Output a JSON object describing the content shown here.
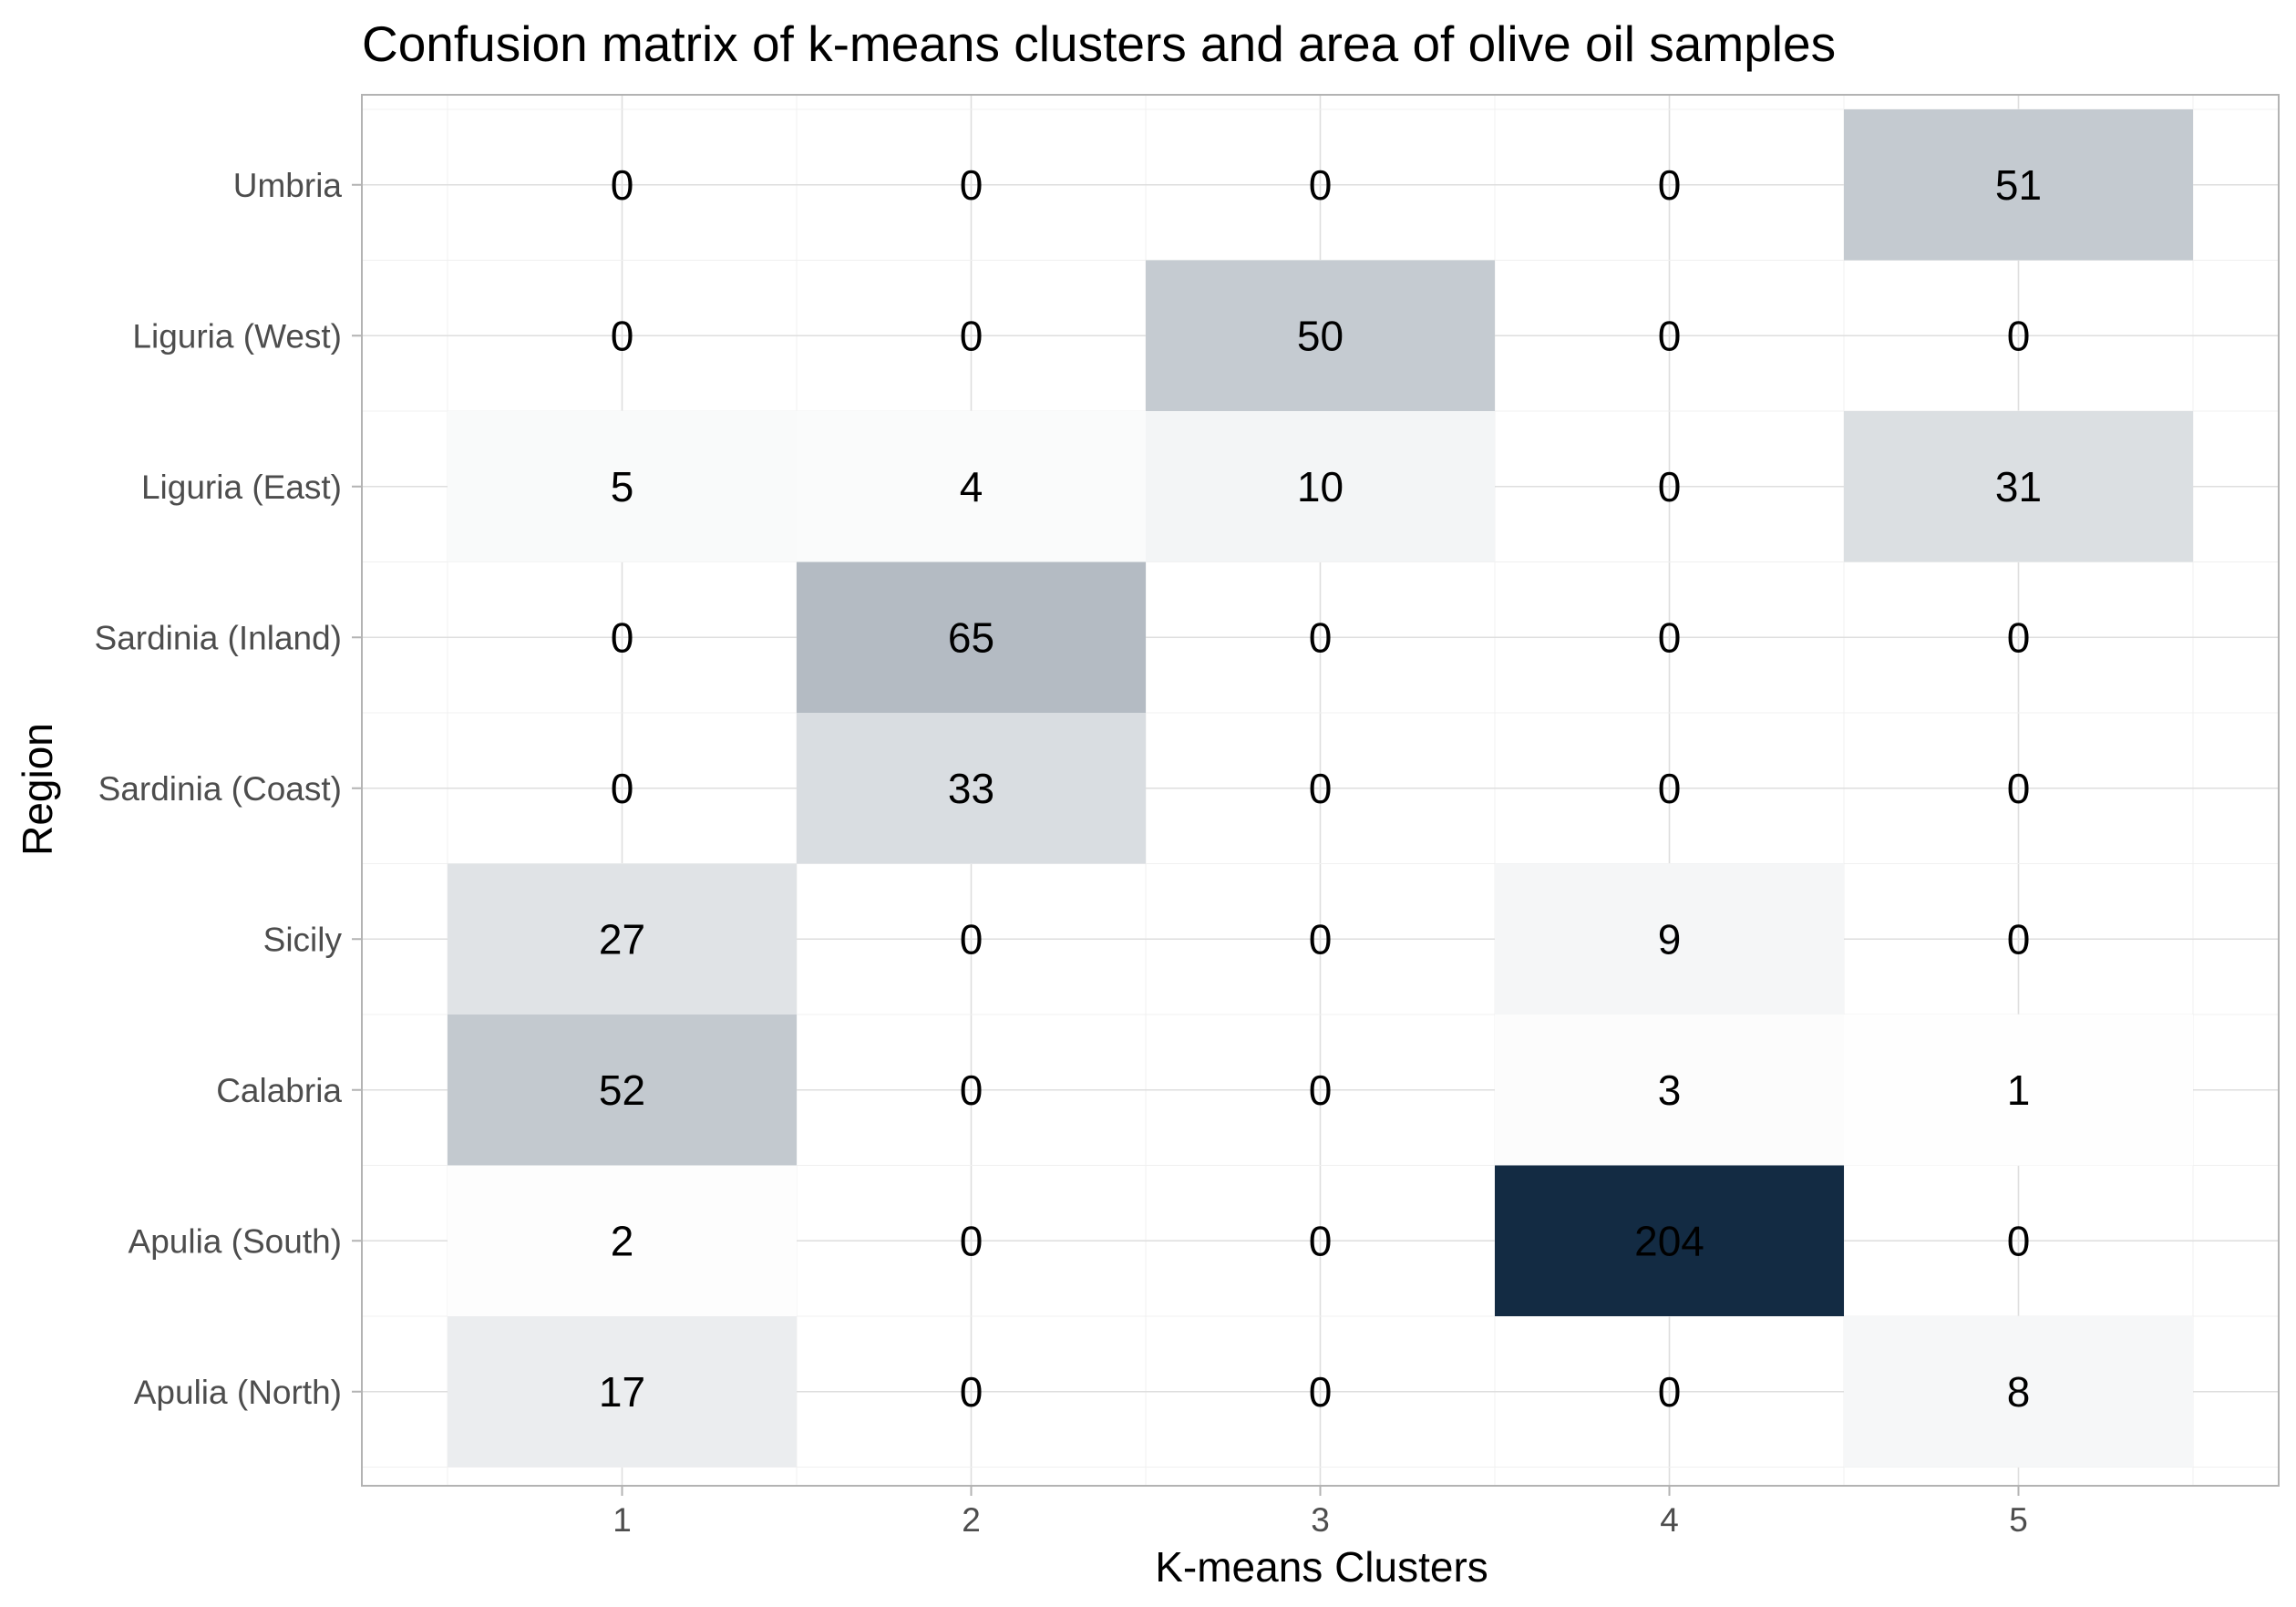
{
  "chart_data": {
    "type": "heatmap",
    "title": "Confusion matrix of k-means clusters and area of olive oil samples",
    "xlabel": "K-means Clusters",
    "ylabel": "Region",
    "x_categories": [
      "1",
      "2",
      "3",
      "4",
      "5"
    ],
    "y_categories": [
      "Umbria",
      "Liguria (West)",
      "Liguria (East)",
      "Sardinia (Inland)",
      "Sardinia (Coast)",
      "Sicily",
      "Calabria",
      "Apulia (South)",
      "Apulia (North)"
    ],
    "values": [
      [
        0,
        0,
        0,
        0,
        51
      ],
      [
        0,
        0,
        50,
        0,
        0
      ],
      [
        5,
        4,
        10,
        0,
        31
      ],
      [
        0,
        65,
        0,
        0,
        0
      ],
      [
        0,
        33,
        0,
        0,
        0
      ],
      [
        27,
        0,
        0,
        9,
        0
      ],
      [
        52,
        0,
        0,
        3,
        1
      ],
      [
        2,
        0,
        0,
        204,
        0
      ],
      [
        17,
        0,
        0,
        0,
        8
      ]
    ],
    "color_low": "#ffffff",
    "color_high": "#132b43",
    "value_range": [
      0,
      204
    ],
    "grid": true,
    "legend": "none"
  }
}
